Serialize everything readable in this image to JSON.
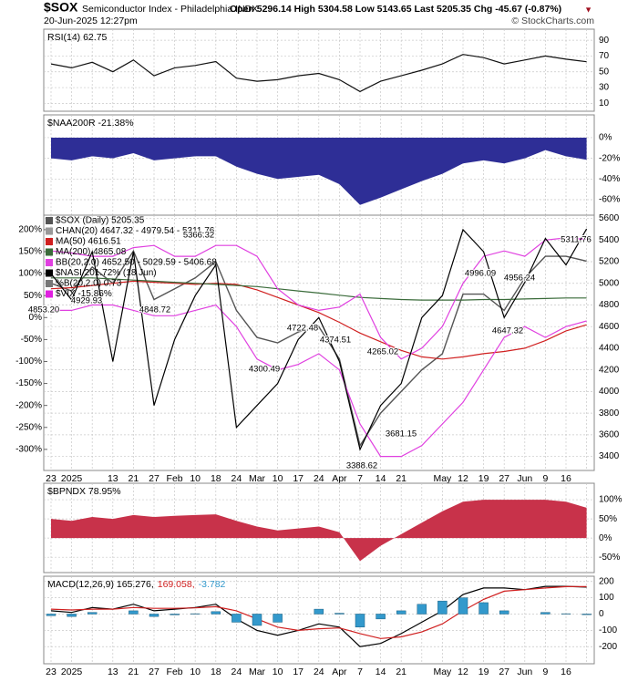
{
  "header": {
    "symbol": "$SOX",
    "name": "Semiconductor Index - Philadelphia INDX",
    "date": "20-Jun-2025 12:27pm",
    "quote": "Open 5296.14 High 5304.58 Low 5143.65 Last 5205.35 Chg -45.67 (-0.87%)",
    "arrow": "▼",
    "credit": "© StockCharts.com"
  },
  "chart_data": [
    {
      "type": "line",
      "label": "RSI(14) 62.75",
      "ylim": [
        0,
        104
      ],
      "yticks": [
        10,
        30,
        50,
        70,
        90
      ],
      "series": [
        {
          "color": "#111111",
          "values": [
            60,
            55,
            62,
            50,
            65,
            45,
            55,
            58,
            63,
            42,
            38,
            40,
            45,
            48,
            40,
            25,
            38,
            45,
            52,
            60,
            72,
            68,
            60,
            65,
            70,
            66,
            62.75
          ]
        }
      ]
    },
    {
      "type": "area",
      "label": "$NAA200R -21.38%",
      "ylim": [
        -75,
        22
      ],
      "yticks": [
        {
          "value": 0,
          "label": "0%"
        },
        {
          "value": -20,
          "label": "-20%"
        },
        {
          "value": -40,
          "label": "-40%"
        },
        {
          "value": -60,
          "label": "-60%"
        }
      ],
      "series": [
        {
          "color": "#2e2e96",
          "values": [
            -20,
            -22,
            -18,
            -20,
            -15,
            -22,
            -20,
            -18,
            -18,
            -28,
            -35,
            -40,
            -38,
            -36,
            -45,
            -65,
            -58,
            -50,
            -42,
            -35,
            -25,
            -22,
            -25,
            -20,
            -12,
            -18,
            -21.38
          ]
        }
      ]
    },
    {
      "type": "line",
      "ylim": [
        3270,
        5630
      ],
      "yticks": [
        3400,
        3600,
        3800,
        4000,
        4200,
        4400,
        4600,
        4800,
        5000,
        5200,
        5400,
        5600
      ],
      "y2lim": [
        -348,
        233
      ],
      "y2ticks": [
        {
          "value": 200,
          "label": "200%"
        },
        {
          "value": 150,
          "label": "150%"
        },
        {
          "value": 100,
          "label": "100%"
        },
        {
          "value": 50,
          "label": "50%"
        },
        {
          "value": 0,
          "label": "0%"
        },
        {
          "value": -50,
          "label": "-50%"
        },
        {
          "value": -100,
          "label": "-100%"
        },
        {
          "value": -150,
          "label": "-150%"
        },
        {
          "value": -200,
          "label": "-200%"
        },
        {
          "value": -250,
          "label": "-250%"
        },
        {
          "value": -300,
          "label": "-300%"
        }
      ],
      "categories": [
        "23",
        "2025",
        null,
        "13",
        "21",
        "27",
        "Feb",
        "10",
        "18",
        "24",
        "Mar",
        "10",
        "17",
        "24",
        "Apr",
        "7",
        "14",
        "21",
        null,
        "May",
        "12",
        "19",
        "27",
        "Jun",
        "9",
        "16",
        null
      ],
      "series": [
        {
          "name": "$SOX (Daily) 5205.35",
          "color": "#555555",
          "values": [
            5000,
            4930,
            5150,
            5000,
            5300,
            4850,
            4950,
            5050,
            5200,
            4750,
            4500,
            4450,
            4550,
            4600,
            4300,
            3500,
            3800,
            4000,
            4200,
            4350,
            4900,
            4900,
            4750,
            5050,
            5250,
            5250,
            5205.35
          ]
        },
        {
          "name": "MA(50) 4616.51",
          "color": "#d02020",
          "values": [
            4950,
            4960,
            4980,
            5000,
            5020,
            5010,
            5000,
            4990,
            5000,
            4990,
            4940,
            4870,
            4800,
            4730,
            4640,
            4540,
            4460,
            4380,
            4320,
            4300,
            4320,
            4350,
            4370,
            4400,
            4470,
            4560,
            4616.51
          ]
        },
        {
          "name": "MA(200) 4865.08",
          "color": "#3a6b3a",
          "values": [
            5050,
            5050,
            5050,
            5040,
            5030,
            5020,
            5010,
            5000,
            4990,
            4980,
            4970,
            4950,
            4930,
            4910,
            4890,
            4870,
            4860,
            4850,
            4845,
            4845,
            4845,
            4850,
            4850,
            4855,
            4860,
            4865,
            4865.08
          ]
        },
        {
          "name": "BB(20,2.0) 4652.50 - 5029.59 - 5406.68",
          "color": "#e040e0",
          "values": [
            5300,
            5280,
            5250,
            5250,
            5330,
            5350,
            5250,
            5250,
            5350,
            5350,
            5250,
            4950,
            4800,
            4750,
            4780,
            4900,
            4500,
            4300,
            4400,
            4600,
            5000,
            5250,
            5300,
            5250,
            5400,
            5420,
            5406.68
          ],
          "lower": [
            4750,
            4750,
            4800,
            4800,
            4750,
            4700,
            4700,
            4750,
            4800,
            4600,
            4300,
            4200,
            4250,
            4350,
            4200,
            3700,
            3400,
            3400,
            3500,
            3700,
            3900,
            4200,
            4500,
            4600,
            4500,
            4600,
            4652.5
          ]
        },
        {
          "name": "$NASI 201.72% (18 Jun)",
          "color": "#000000",
          "axis": "y2",
          "values": [
            100,
            40,
            150,
            -100,
            150,
            -200,
            -50,
            50,
            120,
            -250,
            -200,
            -150,
            -50,
            0,
            -100,
            -300,
            -200,
            -150,
            0,
            50,
            200,
            150,
            0,
            80,
            180,
            120,
            201.72
          ]
        }
      ],
      "legend_items": [
        {
          "name": "CHAN(20) 4647.32 - 4979.54 - 5311.76",
          "color": "#999999"
        },
        {
          "name": "%B(20,2.0) 0.73",
          "color": "#777777"
        },
        {
          "name": "$VIX -15.86%",
          "color": "#e020e0"
        }
      ],
      "annotations": [
        "5366.32",
        "4853.20",
        "4929.93",
        "4848.72",
        "4722.48",
        "4374.51",
        "4300.49",
        "4265.02",
        "3388.62",
        "3681.15",
        "4996.09",
        "4956.24",
        "4647.32",
        "5311.76"
      ]
    },
    {
      "type": "area",
      "label": "$BPNDX 78.95%",
      "ylim": [
        -90,
        143
      ],
      "yticks": [
        {
          "value": 100,
          "label": "100%"
        },
        {
          "value": 50,
          "label": "50%"
        },
        {
          "value": 0,
          "label": "0%"
        },
        {
          "value": -50,
          "label": "-50%"
        }
      ],
      "series": [
        {
          "color": "#c8324a",
          "values": [
            50,
            45,
            55,
            50,
            60,
            55,
            58,
            60,
            62,
            45,
            30,
            20,
            25,
            30,
            15,
            -60,
            -20,
            10,
            40,
            70,
            95,
            100,
            100,
            100,
            100,
            95,
            78.95
          ]
        }
      ]
    },
    {
      "type": "macd",
      "ylim": [
        -305,
        232
      ],
      "yticks": [
        200,
        100,
        0,
        -100,
        -200
      ],
      "categories": [
        "23",
        "2025",
        null,
        "13",
        "21",
        "27",
        "Feb",
        "10",
        "18",
        "24",
        "Mar",
        "10",
        "17",
        "24",
        "Apr",
        "7",
        "14",
        "21",
        null,
        "May",
        "12",
        "19",
        "27",
        "Jun",
        "9",
        "16",
        null
      ],
      "series": [
        {
          "name": "MACD(12,26,9) 165.276,",
          "color": "#000000",
          "values": [
            20,
            10,
            40,
            30,
            60,
            20,
            30,
            40,
            60,
            -30,
            -100,
            -130,
            -100,
            -60,
            -80,
            -200,
            -180,
            -120,
            -50,
            20,
            120,
            160,
            160,
            150,
            170,
            170,
            165.276
          ]
        },
        {
          "name": "169.058,",
          "color": "#d02020",
          "values": [
            30,
            25,
            30,
            30,
            40,
            35,
            35,
            38,
            45,
            20,
            -30,
            -80,
            -100,
            -90,
            -85,
            -120,
            -150,
            -140,
            -110,
            -60,
            20,
            90,
            140,
            150,
            160,
            168,
            169.058
          ]
        },
        {
          "name": "-3.782",
          "color": "#3399cc",
          "type": "bar",
          "values": [
            -10,
            -15,
            10,
            0,
            20,
            -15,
            -5,
            2,
            15,
            -50,
            -70,
            -50,
            0,
            30,
            5,
            -80,
            -30,
            20,
            60,
            80,
            100,
            70,
            20,
            0,
            10,
            2,
            -3.782
          ]
        }
      ]
    }
  ]
}
